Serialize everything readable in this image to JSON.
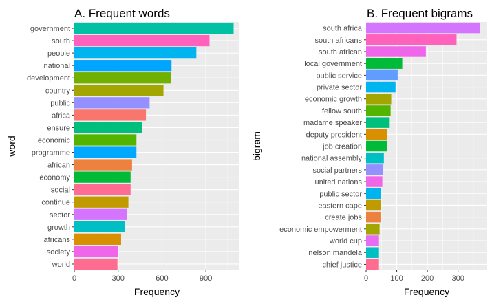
{
  "chart_data": [
    {
      "type": "bar",
      "orientation": "horizontal",
      "title": "A. Frequent words",
      "xlabel": "Frequency",
      "ylabel": "word",
      "xlim": [
        0,
        1130
      ],
      "xticks": [
        0,
        300,
        600,
        900
      ],
      "grid": true,
      "categories": [
        "government",
        "south",
        "people",
        "national",
        "development",
        "country",
        "public",
        "africa",
        "ensure",
        "economic",
        "programme",
        "african",
        "economy",
        "social",
        "continue",
        "sector",
        "growth",
        "africans",
        "society",
        "world"
      ],
      "values": [
        1090,
        925,
        835,
        665,
        660,
        610,
        515,
        490,
        465,
        425,
        425,
        395,
        385,
        385,
        370,
        360,
        345,
        320,
        300,
        295
      ],
      "colors": [
        "#00C1A3",
        "#FF62BC",
        "#00B4F0",
        "#00A5FF",
        "#6FB000",
        "#A3A500",
        "#9590FF",
        "#F8766D",
        "#00BF7D",
        "#53B400",
        "#00A9FF",
        "#ED813E",
        "#00BA38",
        "#FF6C91",
        "#C09B00",
        "#D575FE",
        "#00BFC4",
        "#D89000",
        "#F066EA",
        "#FF6C91"
      ]
    },
    {
      "type": "bar",
      "orientation": "horizontal",
      "title": "B. Frequent bigrams",
      "xlabel": "Frequency",
      "ylabel": "bigram",
      "xlim": [
        0,
        395
      ],
      "xticks": [
        0,
        100,
        200,
        300
      ],
      "grid": true,
      "categories": [
        "south africa",
        "south africans",
        "south african",
        "local government",
        "public service",
        "private sector",
        "economic growth",
        "fellow south",
        "madame speaker",
        "deputy president",
        "job creation",
        "national assembly",
        "social partners",
        "united nations",
        "public sector",
        "eastern cape",
        "create jobs",
        "economic empowerment",
        "world cup",
        "nelson mandela",
        "chief justice"
      ],
      "values": [
        372,
        295,
        195,
        118,
        103,
        96,
        82,
        80,
        77,
        68,
        68,
        58,
        55,
        53,
        48,
        48,
        47,
        44,
        42,
        42,
        42
      ],
      "colors": [
        "#D575FE",
        "#FF62BC",
        "#F066EA",
        "#00BA38",
        "#619CFF",
        "#00B4F0",
        "#A3A500",
        "#53B400",
        "#00BF7D",
        "#D89000",
        "#00BA38",
        "#00BFC4",
        "#9590FF",
        "#F066EA",
        "#00B4F0",
        "#C09B00",
        "#ED813E",
        "#A3A500",
        "#E76BF3",
        "#00BFC4",
        "#FF6C91"
      ]
    }
  ]
}
